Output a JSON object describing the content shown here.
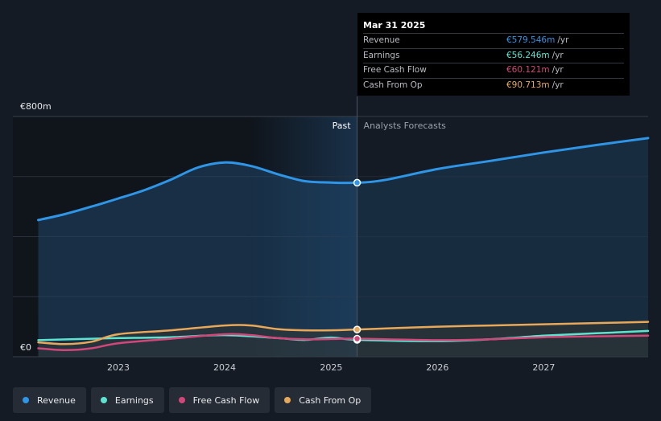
{
  "chart_data": {
    "type": "area",
    "y_unit_label_top": "€800m",
    "y_unit_label_bottom": "€0",
    "ylim": [
      0,
      800
    ],
    "x_ticks": [
      "2023",
      "2024",
      "2025",
      "2026",
      "2027"
    ],
    "past_label": "Past",
    "forecast_label": "Analysts Forecasts",
    "divider_date": "2025-03-31",
    "grid": true,
    "series": [
      {
        "name": "Revenue",
        "color": "#2f95e6",
        "points": [
          [
            "2022-04-01",
            455
          ],
          [
            "2022-07-01",
            475
          ],
          [
            "2022-10-01",
            500
          ],
          [
            "2023-01-01",
            527
          ],
          [
            "2023-04-01",
            555
          ],
          [
            "2023-07-01",
            590
          ],
          [
            "2023-10-01",
            630
          ],
          [
            "2024-01-01",
            647
          ],
          [
            "2024-04-01",
            635
          ],
          [
            "2024-07-01",
            608
          ],
          [
            "2024-10-01",
            585
          ],
          [
            "2025-01-01",
            580
          ],
          [
            "2025-03-31",
            579.546
          ],
          [
            "2025-07-01",
            588
          ],
          [
            "2026-01-01",
            625
          ],
          [
            "2026-07-01",
            652
          ],
          [
            "2027-01-01",
            680
          ],
          [
            "2027-07-01",
            705
          ],
          [
            "2028-01-01",
            728
          ]
        ]
      },
      {
        "name": "Earnings",
        "color": "#5de4d1",
        "points": [
          [
            "2022-04-01",
            55
          ],
          [
            "2022-10-01",
            60
          ],
          [
            "2023-01-01",
            62
          ],
          [
            "2023-07-01",
            65
          ],
          [
            "2024-01-01",
            72
          ],
          [
            "2024-07-01",
            62
          ],
          [
            "2024-10-01",
            56
          ],
          [
            "2025-01-01",
            64
          ],
          [
            "2025-03-31",
            56.246
          ],
          [
            "2026-01-01",
            52
          ],
          [
            "2026-07-01",
            58
          ],
          [
            "2027-01-01",
            70
          ],
          [
            "2027-07-01",
            78
          ],
          [
            "2028-01-01",
            86
          ]
        ]
      },
      {
        "name": "Free Cash Flow",
        "color": "#d1477a",
        "points": [
          [
            "2022-04-01",
            28
          ],
          [
            "2022-07-01",
            22
          ],
          [
            "2022-10-01",
            28
          ],
          [
            "2023-01-01",
            45
          ],
          [
            "2023-07-01",
            60
          ],
          [
            "2024-01-01",
            75
          ],
          [
            "2024-04-01",
            72
          ],
          [
            "2024-07-01",
            62
          ],
          [
            "2024-10-01",
            58
          ],
          [
            "2025-01-01",
            59
          ],
          [
            "2025-03-31",
            60.121
          ],
          [
            "2026-01-01",
            55
          ],
          [
            "2026-07-01",
            58
          ],
          [
            "2027-01-01",
            65
          ],
          [
            "2027-07-01",
            68
          ],
          [
            "2028-01-01",
            70
          ]
        ]
      },
      {
        "name": "Cash From Op",
        "color": "#e8a85a",
        "points": [
          [
            "2022-04-01",
            48
          ],
          [
            "2022-07-01",
            42
          ],
          [
            "2022-10-01",
            50
          ],
          [
            "2023-01-01",
            75
          ],
          [
            "2023-07-01",
            88
          ],
          [
            "2024-01-01",
            104
          ],
          [
            "2024-04-01",
            104
          ],
          [
            "2024-07-01",
            92
          ],
          [
            "2024-10-01",
            88
          ],
          [
            "2025-01-01",
            88
          ],
          [
            "2025-03-31",
            90.713
          ],
          [
            "2026-01-01",
            100
          ],
          [
            "2026-07-01",
            104
          ],
          [
            "2027-01-01",
            108
          ],
          [
            "2027-07-01",
            112
          ],
          [
            "2028-01-01",
            116
          ]
        ]
      }
    ]
  },
  "tooltip": {
    "date": "Mar 31 2025",
    "rows": [
      {
        "label": "Revenue",
        "value": "€579.546m",
        "unit": "/yr",
        "color": "#2f95e6"
      },
      {
        "label": "Earnings",
        "value": "€56.246m",
        "unit": "/yr",
        "color": "#5de4d1"
      },
      {
        "label": "Free Cash Flow",
        "value": "€60.121m",
        "unit": "/yr",
        "color": "#d1477a"
      },
      {
        "label": "Cash From Op",
        "value": "€90.713m",
        "unit": "/yr",
        "color": "#e8a85a"
      }
    ]
  },
  "legend": [
    {
      "label": "Revenue",
      "color": "#2f95e6"
    },
    {
      "label": "Earnings",
      "color": "#5de4d1"
    },
    {
      "label": "Free Cash Flow",
      "color": "#d1477a"
    },
    {
      "label": "Cash From Op",
      "color": "#e8a85a"
    }
  ]
}
